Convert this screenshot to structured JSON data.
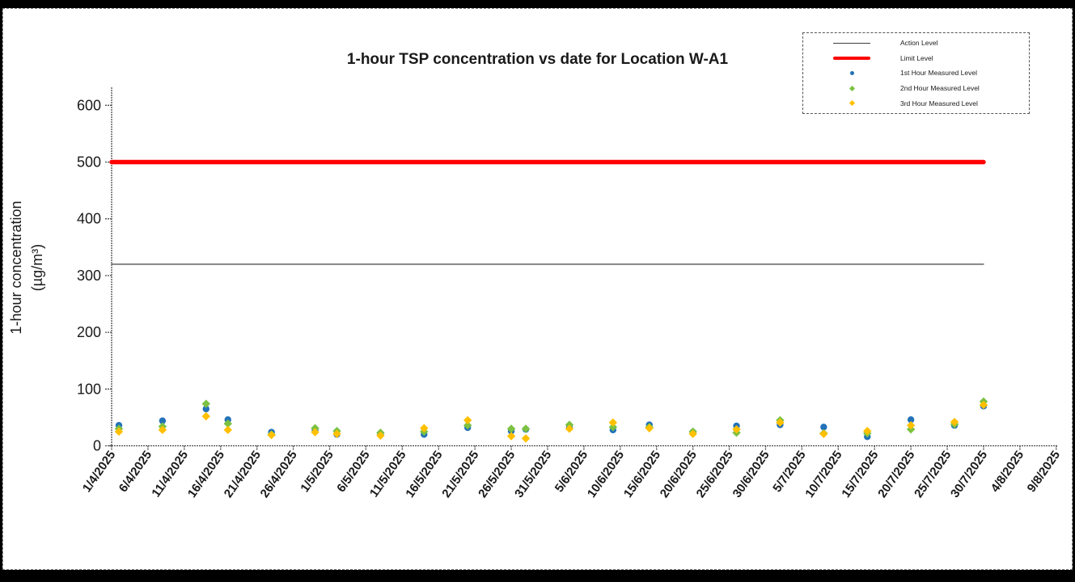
{
  "chart_data": {
    "type": "scatter",
    "title": "1-hour TSP concentration vs date for Location W-A1",
    "ylabel_line1": "1-hour concentration",
    "ylabel_line2": "(µg/m³)",
    "ylim": [
      0,
      600
    ],
    "y_ticks": [
      0,
      100,
      200,
      300,
      400,
      500,
      600
    ],
    "x_ticks": [
      "1/4/2025",
      "6/4/2025",
      "11/4/2025",
      "16/4/2025",
      "21/4/2025",
      "26/4/2025",
      "1/5/2025",
      "6/5/2025",
      "11/5/2025",
      "16/5/2025",
      "21/5/2025",
      "26/5/2025",
      "31/5/2025",
      "5/6/2025",
      "10/6/2025",
      "15/6/2025",
      "20/6/2025",
      "25/6/2025",
      "30/6/2025",
      "5/7/2025",
      "10/7/2025",
      "15/7/2025",
      "20/7/2025",
      "25/7/2025",
      "30/7/2025",
      "4/8/2025",
      "9/8/2025"
    ],
    "x_start_date": "1/4/2025",
    "x_end_date": "9/8/2025",
    "reference_lines": [
      {
        "name": "Action Level",
        "value": 320,
        "color": "#404040",
        "width": 1.3,
        "span": [
          "1/4/2025",
          "30/7/2025"
        ]
      },
      {
        "name": "Limit Level",
        "value": 500,
        "color": "#FF0000",
        "width": 5.5,
        "span": [
          "1/4/2025",
          "30/7/2025"
        ]
      }
    ],
    "dates": [
      "2/4/2025",
      "8/4/2025",
      "14/4/2025",
      "17/4/2025",
      "23/4/2025",
      "29/4/2025",
      "2/5/2025",
      "8/5/2025",
      "14/5/2025",
      "20/5/2025",
      "26/5/2025",
      "28/5/2025",
      "3/6/2025",
      "9/6/2025",
      "14/6/2025",
      "20/6/2025",
      "26/6/2025",
      "2/7/2025",
      "8/7/2025",
      "14/7/2025",
      "20/7/2025",
      "26/7/2025",
      "30/7/2025"
    ],
    "series": [
      {
        "name": "1st Hour Measured Level",
        "marker": "circle",
        "color": "#2272B9",
        "values": [
          36,
          44,
          65,
          46,
          24,
          28,
          20,
          20,
          20,
          32,
          26,
          29,
          33,
          28,
          37,
          24,
          35,
          37,
          33,
          16,
          46,
          36,
          70
        ]
      },
      {
        "name": "2nd Hour Measured Level",
        "marker": "diamond",
        "color": "#7CC142",
        "values": [
          30,
          34,
          74,
          39,
          20,
          31,
          26,
          23,
          25,
          36,
          30,
          30,
          37,
          33,
          33,
          25,
          23,
          45,
          22,
          22,
          29,
          38,
          78
        ]
      },
      {
        "name": "3rd Hour Measured Level",
        "marker": "diamond",
        "color": "#FFC000",
        "values": [
          25,
          28,
          52,
          28,
          19,
          24,
          21,
          18,
          31,
          45,
          17,
          13,
          30,
          41,
          31,
          21,
          29,
          41,
          21,
          26,
          36,
          42,
          72
        ]
      }
    ]
  },
  "legend": {
    "items": [
      {
        "label": "Action Level",
        "swatch": "line",
        "color": "#404040",
        "thickness": 1
      },
      {
        "label": "Limit Level",
        "swatch": "line",
        "color": "#FF0000",
        "thickness": 4
      },
      {
        "label": "1st Hour Measured Level",
        "swatch": "circle",
        "color": "#2272B9"
      },
      {
        "label": "2nd Hour Measured Level",
        "swatch": "diamond",
        "color": "#7CC142"
      },
      {
        "label": "3rd Hour Measured Level",
        "swatch": "diamond",
        "color": "#FFC000"
      }
    ]
  }
}
